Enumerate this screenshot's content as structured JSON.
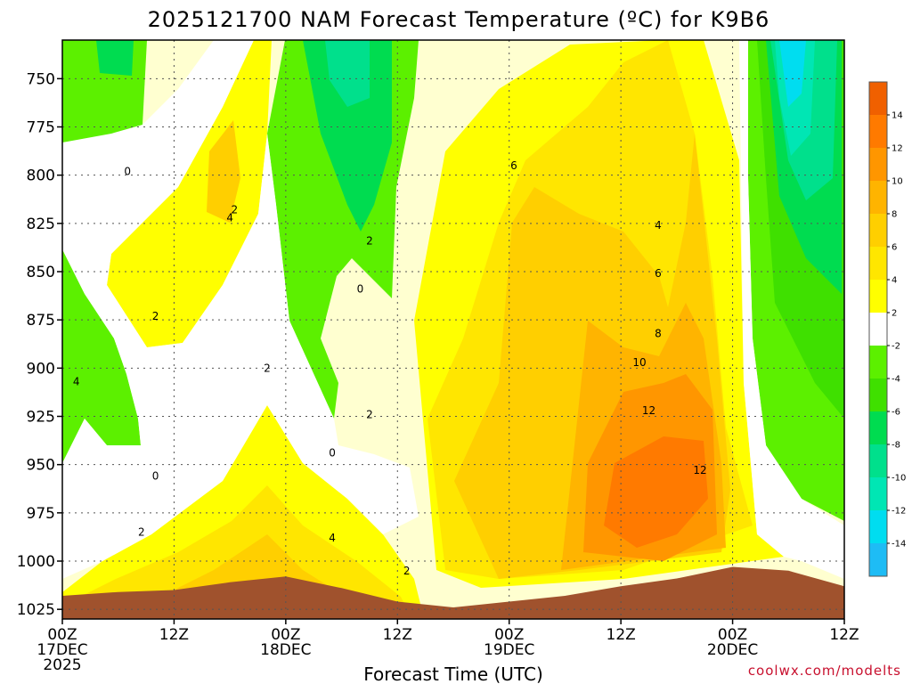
{
  "chart_data": {
    "type": "heatmap",
    "title": "2025121700 NAM Forecast Temperature (ºC) for K9B6",
    "xlabel": "Forecast Time (UTC)",
    "ylabel": "",
    "y_scale": "linear-reversed",
    "ylim": [
      1030,
      730
    ],
    "xlim_hours": [
      0,
      84
    ],
    "y_ticks": [
      750,
      775,
      800,
      825,
      850,
      875,
      900,
      925,
      950,
      975,
      1000,
      1025
    ],
    "x_ticks": [
      {
        "hour": 0,
        "lines": [
          "00Z",
          "17DEC",
          "2025"
        ]
      },
      {
        "hour": 12,
        "lines": [
          "12Z"
        ]
      },
      {
        "hour": 24,
        "lines": [
          "00Z",
          "18DEC"
        ]
      },
      {
        "hour": 36,
        "lines": [
          "12Z"
        ]
      },
      {
        "hour": 48,
        "lines": [
          "00Z",
          "19DEC"
        ]
      },
      {
        "hour": 60,
        "lines": [
          "12Z"
        ]
      },
      {
        "hour": 72,
        "lines": [
          "00Z",
          "20DEC"
        ]
      },
      {
        "hour": 84,
        "lines": [
          "12Z"
        ]
      }
    ],
    "grid": true,
    "colorbar": {
      "placement": "right",
      "levels": [
        -16,
        -14,
        -12,
        -10,
        -8,
        -6,
        -4,
        -2,
        2,
        4,
        6,
        8,
        10,
        12,
        14,
        16
      ],
      "tick_labels": [
        14,
        12,
        10,
        8,
        6,
        4,
        2,
        -2,
        -4,
        -6,
        -8,
        -10,
        -12,
        -14
      ],
      "colors": [
        "#1ebcf5",
        "#00ddf0",
        "#00e6b4",
        "#00e08c",
        "#00dc50",
        "#3fe000",
        "#5cf000",
        "#ffffff",
        "#ffff00",
        "#ffe600",
        "#ffcf00",
        "#ffb400",
        "#ff9600",
        "#ff7a00",
        "#f06000"
      ]
    },
    "terrain_color": "#a0522d",
    "surface_pressure": {
      "hours": [
        0,
        6,
        12,
        18,
        24,
        30,
        36,
        42,
        48,
        54,
        60,
        66,
        72,
        78,
        84
      ],
      "values": [
        1018,
        1016,
        1015,
        1011,
        1008,
        1014,
        1021,
        1024,
        1021,
        1018,
        1013,
        1009,
        1003,
        1005,
        1013
      ]
    },
    "contour_labels": [
      {
        "hour": 7.0,
        "p": 798,
        "text": "0"
      },
      {
        "hour": 18.5,
        "p": 818,
        "text": "2"
      },
      {
        "hour": 18.0,
        "p": 822,
        "text": "4"
      },
      {
        "hour": 10.0,
        "p": 873,
        "text": "2"
      },
      {
        "hour": 1.5,
        "p": 907,
        "text": "4"
      },
      {
        "hour": 22.0,
        "p": 900,
        "text": "2"
      },
      {
        "hour": 33.0,
        "p": 834,
        "text": "2"
      },
      {
        "hour": 32.0,
        "p": 859,
        "text": "0"
      },
      {
        "hour": 33.0,
        "p": 924,
        "text": "2"
      },
      {
        "hour": 29.0,
        "p": 944,
        "text": "0"
      },
      {
        "hour": 10.0,
        "p": 956,
        "text": "0"
      },
      {
        "hour": 8.5,
        "p": 985,
        "text": "2"
      },
      {
        "hour": 29.0,
        "p": 988,
        "text": "4"
      },
      {
        "hour": 37.0,
        "p": 1005,
        "text": "2"
      },
      {
        "hour": 48.5,
        "p": 795,
        "text": "6"
      },
      {
        "hour": 64.0,
        "p": 826,
        "text": "4"
      },
      {
        "hour": 64.0,
        "p": 851,
        "text": "6"
      },
      {
        "hour": 64.0,
        "p": 882,
        "text": "8"
      },
      {
        "hour": 62.0,
        "p": 897,
        "text": "10"
      },
      {
        "hour": 63.0,
        "p": 922,
        "text": "12"
      },
      {
        "hour": 68.5,
        "p": 953,
        "text": "12"
      }
    ]
  },
  "credit": "coolwx.com/modelts",
  "legend_labels": {
    "box_color": "#000000"
  }
}
